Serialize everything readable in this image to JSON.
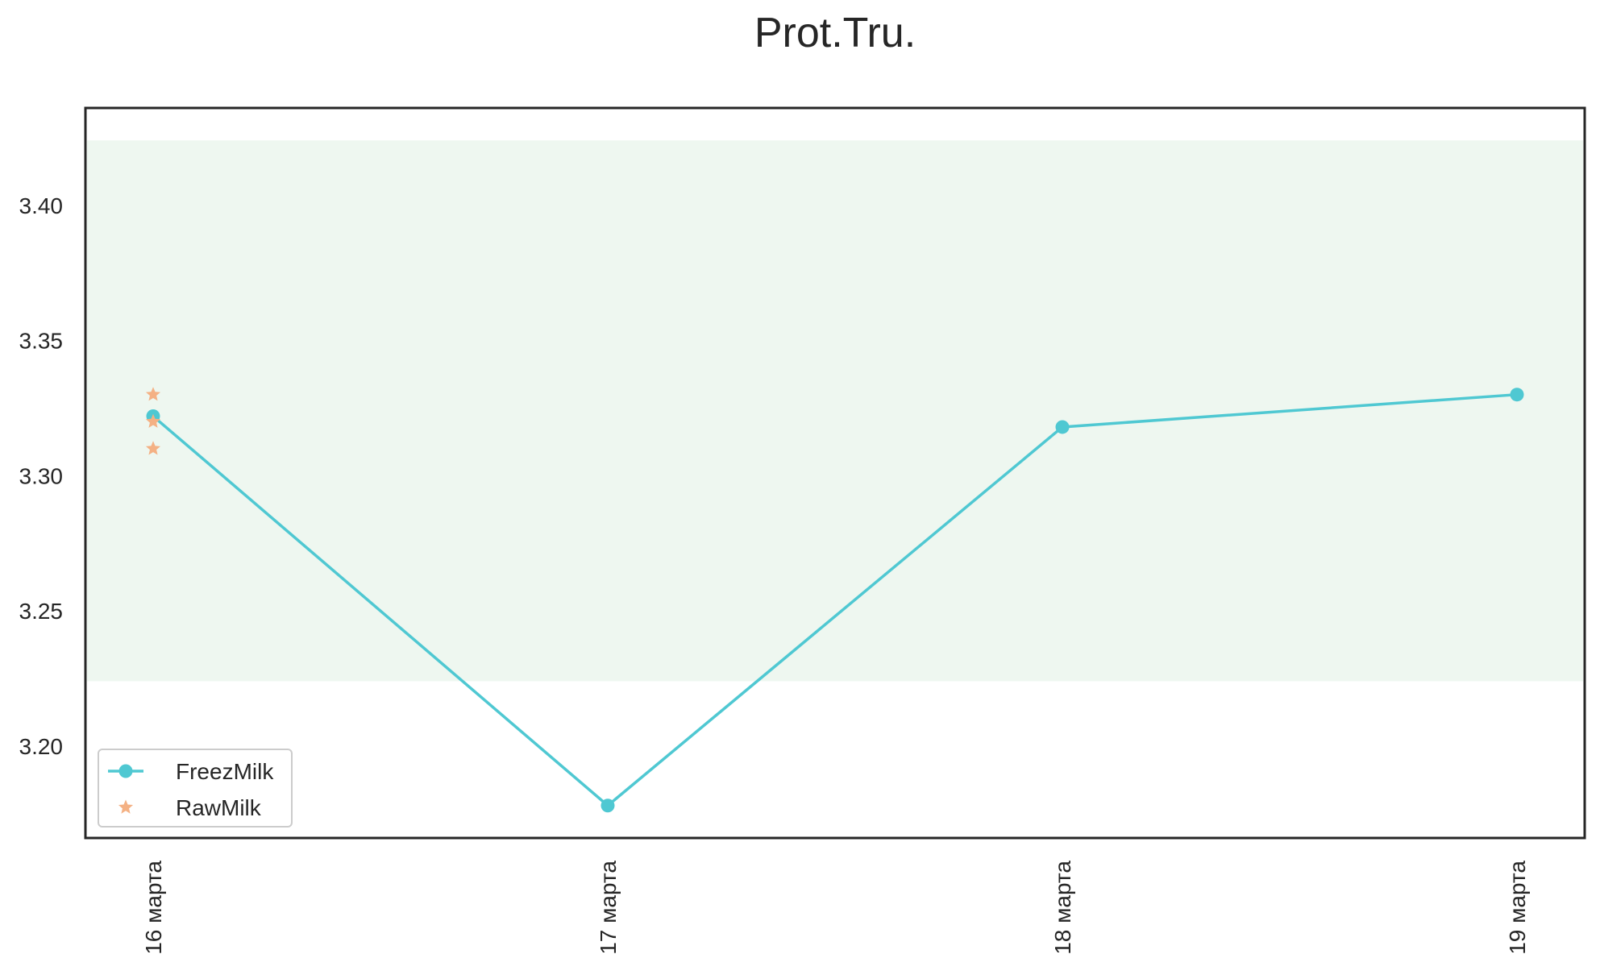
{
  "chart_data": {
    "type": "line",
    "title": "Prot.Tru.",
    "xlabel": "",
    "ylabel": "",
    "categories": [
      "16 марта",
      "17 марта",
      "18 марта",
      "19 марта"
    ],
    "ylim": [
      3.166,
      3.436
    ],
    "yticks": [
      3.2,
      3.25,
      3.3,
      3.35,
      3.4
    ],
    "ytick_labels": [
      "3.20",
      "3.25",
      "3.30",
      "3.35",
      "3.40"
    ],
    "band": {
      "from": 3.224,
      "to": 3.424,
      "color": "#eef7f0"
    },
    "grid": false,
    "legend_position": "lower-left",
    "series": [
      {
        "name": "FreezMilk",
        "kind": "line-marker",
        "color": "#4fc8d2",
        "values": [
          3.322,
          3.178,
          3.318,
          3.33
        ]
      },
      {
        "name": "RawMilk",
        "kind": "star-scatter",
        "color": "#f4b184",
        "points": [
          {
            "category": "16 марта",
            "y": 3.33
          },
          {
            "category": "16 марта",
            "y": 3.32
          },
          {
            "category": "16 марта",
            "y": 3.31
          }
        ]
      }
    ]
  }
}
